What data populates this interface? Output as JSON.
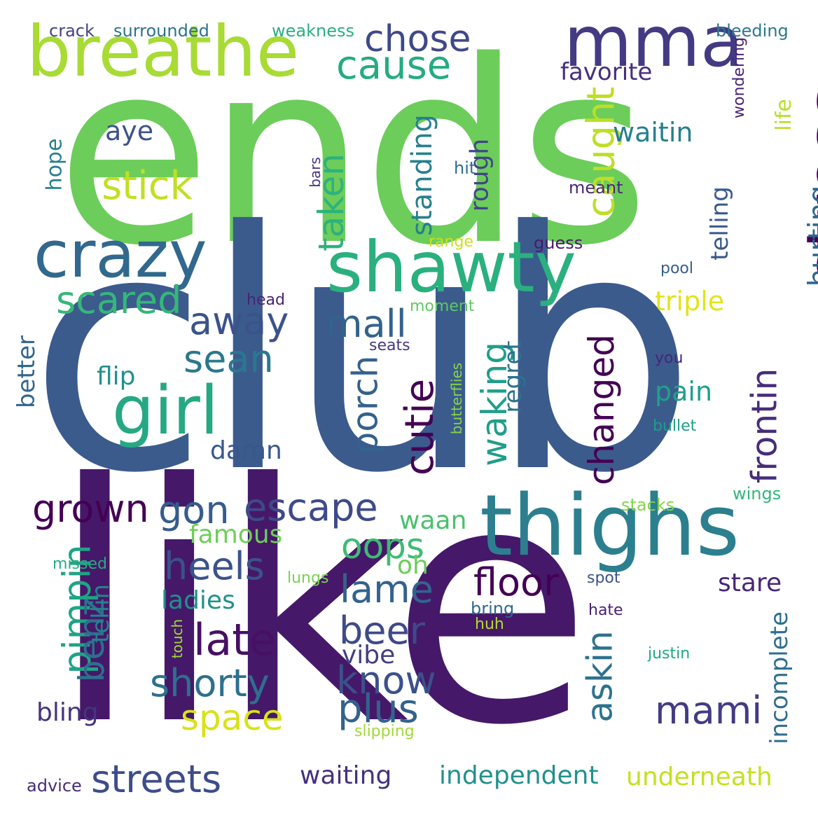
{
  "words": [
    {
      "text": "ends",
      "color": "#6ccd5a",
      "vertical": false
    },
    {
      "text": "club",
      "color": "#3b5b8d",
      "vertical": false
    },
    {
      "text": "like",
      "color": "#461869",
      "vertical": false
    },
    {
      "text": "breathe",
      "color": "#a8db34",
      "vertical": false
    },
    {
      "text": "mma",
      "color": "#443a83",
      "vertical": false
    },
    {
      "text": "stress",
      "color": "#440154",
      "vertical": true
    },
    {
      "text": "crazy",
      "color": "#31688e",
      "vertical": false
    },
    {
      "text": "shawty",
      "color": "#2ab07f",
      "vertical": false
    },
    {
      "text": "thighs",
      "color": "#2c7f8e",
      "vertical": false
    },
    {
      "text": "girl",
      "color": "#26a883",
      "vertical": false
    },
    {
      "text": "chose",
      "color": "#3f4889",
      "vertical": false
    },
    {
      "text": "cause",
      "color": "#25ab82",
      "vertical": false
    },
    {
      "text": "caught",
      "color": "#bddf26",
      "vertical": true
    },
    {
      "text": "favorite",
      "color": "#472f7d",
      "vertical": false
    },
    {
      "text": "stick",
      "color": "#c2df23",
      "vertical": false
    },
    {
      "text": "taken",
      "color": "#2db27d",
      "vertical": true
    },
    {
      "text": "standing",
      "color": "#27808e",
      "vertical": true
    },
    {
      "text": "rough",
      "color": "#404688",
      "vertical": true
    },
    {
      "text": "aye",
      "color": "#3b528b",
      "vertical": false
    },
    {
      "text": "waitin",
      "color": "#277f8e",
      "vertical": false
    },
    {
      "text": "hurting",
      "color": "#31668e",
      "vertical": true
    },
    {
      "text": "life",
      "color": "#b8de29",
      "vertical": true
    },
    {
      "text": "telling",
      "color": "#38598c",
      "vertical": true
    },
    {
      "text": "wondering",
      "color": "#482374",
      "vertical": true
    },
    {
      "text": "bleeding",
      "color": "#2a788e",
      "vertical": false
    },
    {
      "text": "crack",
      "color": "#414287",
      "vertical": false
    },
    {
      "text": "surrounded",
      "color": "#2c728e",
      "vertical": false
    },
    {
      "text": "weakness",
      "color": "#29af7f",
      "vertical": false
    },
    {
      "text": "hope",
      "color": "#277f8e",
      "vertical": true
    },
    {
      "text": "bars",
      "color": "#453581",
      "vertical": true
    },
    {
      "text": "hit",
      "color": "#2e6f8e",
      "vertical": false
    },
    {
      "text": "meant",
      "color": "#482878",
      "vertical": false
    },
    {
      "text": "range",
      "color": "#c8e020",
      "vertical": false
    },
    {
      "text": "guess",
      "color": "#481a6c",
      "vertical": false
    },
    {
      "text": "pool",
      "color": "#365d8d",
      "vertical": false
    },
    {
      "text": "scared",
      "color": "#35b779",
      "vertical": false
    },
    {
      "text": "away",
      "color": "#3b528b",
      "vertical": false
    },
    {
      "text": "mall",
      "color": "#33638d",
      "vertical": false
    },
    {
      "text": "sean",
      "color": "#2a788e",
      "vertical": false
    },
    {
      "text": "porch",
      "color": "#34618d",
      "vertical": true
    },
    {
      "text": "cutie",
      "color": "#440154",
      "vertical": true
    },
    {
      "text": "waking",
      "color": "#1f9e89",
      "vertical": true
    },
    {
      "text": "changed",
      "color": "#440154",
      "vertical": true
    },
    {
      "text": "regret",
      "color": "#2c728e",
      "vertical": true
    },
    {
      "text": "triple",
      "color": "#e2e418",
      "vertical": false
    },
    {
      "text": "frontin",
      "color": "#472d7b",
      "vertical": true
    },
    {
      "text": "head",
      "color": "#482374",
      "vertical": false
    },
    {
      "text": "moment",
      "color": "#5ec962",
      "vertical": false
    },
    {
      "text": "seats",
      "color": "#453882",
      "vertical": false
    },
    {
      "text": "better",
      "color": "#31678e",
      "vertical": true
    },
    {
      "text": "flip",
      "color": "#21918c",
      "vertical": false
    },
    {
      "text": "pain",
      "color": "#1fa188",
      "vertical": false
    },
    {
      "text": "you",
      "color": "#482475",
      "vertical": false
    },
    {
      "text": "butterflies",
      "color": "#86d549",
      "vertical": true
    },
    {
      "text": "bullet",
      "color": "#1f9e89",
      "vertical": false
    },
    {
      "text": "damn",
      "color": "#38588c",
      "vertical": false
    },
    {
      "text": "grown",
      "color": "#440154",
      "vertical": false
    },
    {
      "text": "gon",
      "color": "#365c8d",
      "vertical": false
    },
    {
      "text": "escape",
      "color": "#3e4a89",
      "vertical": false
    },
    {
      "text": "oops",
      "color": "#3dbc74",
      "vertical": false
    },
    {
      "text": "waan",
      "color": "#4ac16d",
      "vertical": false
    },
    {
      "text": "stacks",
      "color": "#84d44b",
      "vertical": false
    },
    {
      "text": "wings",
      "color": "#32b67a",
      "vertical": false
    },
    {
      "text": "famous",
      "color": "#6ece58",
      "vertical": false
    },
    {
      "text": "heels",
      "color": "#3b528b",
      "vertical": false
    },
    {
      "text": "floor",
      "color": "#440154",
      "vertical": false
    },
    {
      "text": "lame",
      "color": "#33638d",
      "vertical": false
    },
    {
      "text": "oh",
      "color": "#6ccd5a",
      "vertical": false
    },
    {
      "text": "stare",
      "color": "#482677",
      "vertical": false
    },
    {
      "text": "pimpin",
      "color": "#20a386",
      "vertical": true
    },
    {
      "text": "missed",
      "color": "#27ad81",
      "vertical": false
    },
    {
      "text": "lungs",
      "color": "#7ad151",
      "vertical": false
    },
    {
      "text": "spot",
      "color": "#3b528b",
      "vertical": false
    },
    {
      "text": "ladies",
      "color": "#21918c",
      "vertical": false
    },
    {
      "text": "benz",
      "color": "#2d708e",
      "vertical": true
    },
    {
      "text": "tellin",
      "color": "#26828e",
      "vertical": true
    },
    {
      "text": "late",
      "color": "#471063",
      "vertical": false
    },
    {
      "text": "touch",
      "color": "#a2da37",
      "vertical": true
    },
    {
      "text": "beer",
      "color": "#3e4a89",
      "vertical": false
    },
    {
      "text": "bring",
      "color": "#31678e",
      "vertical": false
    },
    {
      "text": "huh",
      "color": "#b2dd2d",
      "vertical": false
    },
    {
      "text": "hate",
      "color": "#482173",
      "vertical": false
    },
    {
      "text": "askin",
      "color": "#2c728e",
      "vertical": true
    },
    {
      "text": "incomplete",
      "color": "#2e6e8e",
      "vertical": true
    },
    {
      "text": "justin",
      "color": "#21a685",
      "vertical": false
    },
    {
      "text": "shorty",
      "color": "#2d708e",
      "vertical": false
    },
    {
      "text": "vibe",
      "color": "#433e85",
      "vertical": false
    },
    {
      "text": "know",
      "color": "#3b518b",
      "vertical": false
    },
    {
      "text": "space",
      "color": "#d8e219",
      "vertical": false
    },
    {
      "text": "plus",
      "color": "#33638d",
      "vertical": false
    },
    {
      "text": "mami",
      "color": "#443b84",
      "vertical": false
    },
    {
      "text": "bling",
      "color": "#46337f",
      "vertical": false
    },
    {
      "text": "slipping",
      "color": "#a0da39",
      "vertical": false
    },
    {
      "text": "streets",
      "color": "#3d4d8a",
      "vertical": false
    },
    {
      "text": "waiting",
      "color": "#46307e",
      "vertical": false
    },
    {
      "text": "independent",
      "color": "#21918c",
      "vertical": false
    },
    {
      "text": "underneath",
      "color": "#c5e021",
      "vertical": false
    },
    {
      "text": "advice",
      "color": "#472c7a",
      "vertical": false
    }
  ]
}
